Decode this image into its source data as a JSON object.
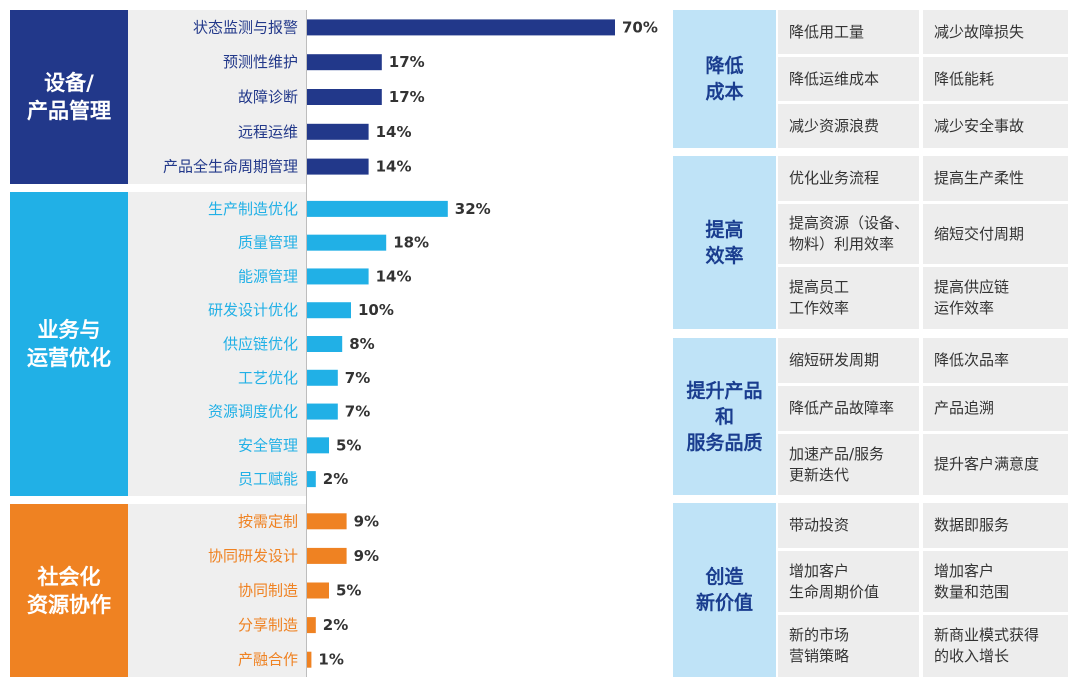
{
  "colors": {
    "equipment": "#22388a",
    "operations": "#21b0e6",
    "social": "#ef8222",
    "value_head_bg": "#bfe3f7",
    "value_head_text": "#1a3d8f",
    "cell_bg": "#ededed"
  },
  "chart_data": {
    "type": "bar",
    "orientation": "horizontal",
    "unit": "%",
    "xlim": [
      0,
      70
    ],
    "groups": [
      {
        "name": "设备/\n产品管理",
        "color": "#22388a",
        "categories": [
          "状态监测与报警",
          "预测性维护",
          "故障诊断",
          "远程运维",
          "产品全生命周期管理"
        ],
        "values": [
          70,
          17,
          17,
          14,
          14
        ],
        "labels": [
          "70%",
          "17%",
          "17%",
          "14%",
          "14%"
        ]
      },
      {
        "name": "业务与\n运营优化",
        "color": "#21b0e6",
        "categories": [
          "生产制造优化",
          "质量管理",
          "能源管理",
          "研发设计优化",
          "供应链优化",
          "工艺优化",
          "资源调度优化",
          "安全管理",
          "员工赋能"
        ],
        "values": [
          32,
          18,
          14,
          10,
          8,
          7,
          7,
          5,
          2
        ],
        "labels": [
          "32%",
          "18%",
          "14%",
          "10%",
          "8%",
          "7%",
          "7%",
          "5%",
          "2%"
        ]
      },
      {
        "name": "社会化\n资源协作",
        "color": "#ef8222",
        "categories": [
          "按需定制",
          "协同研发设计",
          "协同制造",
          "分享制造",
          "产融合作"
        ],
        "values": [
          9,
          9,
          5,
          2,
          1
        ],
        "labels": [
          "9%",
          "9%",
          "5%",
          "2%",
          "1%"
        ]
      }
    ]
  },
  "value_table": [
    {
      "head": "降低\n成本",
      "cells": [
        [
          "降低用工量",
          "减少故障损失"
        ],
        [
          "降低运维成本",
          "降低能耗"
        ],
        [
          "减少资源浪费",
          "减少安全事故"
        ]
      ]
    },
    {
      "head": "提高\n效率",
      "cells": [
        [
          "优化业务流程",
          "提高生产柔性"
        ],
        [
          "提高资源（设备、\n物料）利用效率",
          "缩短交付周期"
        ],
        [
          "提高员工\n工作效率",
          "提高供应链\n运作效率"
        ]
      ]
    },
    {
      "head": "提升产品\n和\n服务品质",
      "cells": [
        [
          "缩短研发周期",
          "降低次品率"
        ],
        [
          "降低产品故障率",
          "产品追溯"
        ],
        [
          "加速产品/服务\n更新迭代",
          "提升客户满意度"
        ]
      ]
    },
    {
      "head": "创造\n新价值",
      "cells": [
        [
          "带动投资",
          "数据即服务"
        ],
        [
          "增加客户\n生命周期价值",
          "增加客户\n数量和范围"
        ],
        [
          "新的市场\n营销策略",
          "新商业模式获得\n的收入增长"
        ]
      ]
    }
  ]
}
